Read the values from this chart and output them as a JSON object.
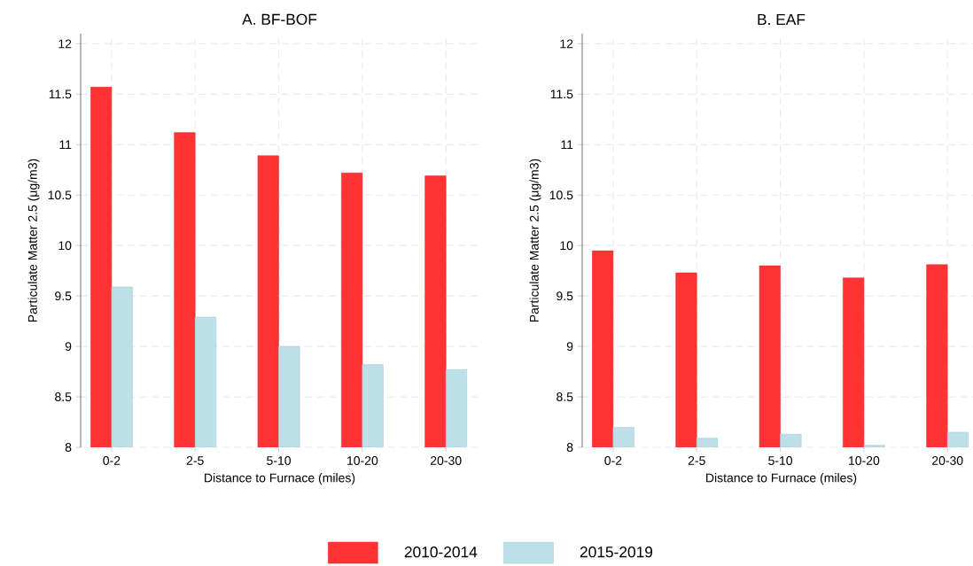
{
  "chart_data": [
    {
      "type": "bar",
      "title": "A. BF-BOF",
      "xlabel": "Distance to Furnace (miles)",
      "ylabel": "Particulate Matter 2.5 (μg/m3)",
      "categories": [
        "0-2",
        "2-5",
        "5-10",
        "10-20",
        "20-30"
      ],
      "series": [
        {
          "name": "2010-2014",
          "color": "#ff3333",
          "values": [
            11.57,
            11.12,
            10.89,
            10.72,
            10.69
          ]
        },
        {
          "name": "2015-2019",
          "color": "#bddfe8",
          "values": [
            9.59,
            9.29,
            9.0,
            8.82,
            8.77
          ]
        }
      ],
      "ylim": [
        8,
        12.1
      ],
      "yticks": [
        8,
        8.5,
        9,
        9.5,
        10,
        10.5,
        11,
        11.5,
        12
      ],
      "grid": true,
      "legend": "bottom"
    },
    {
      "type": "bar",
      "title": "B. EAF",
      "xlabel": "Distance to Furnace (miles)",
      "ylabel": "Particulate Matter 2.5 (μg/m3)",
      "categories": [
        "0-2",
        "2-5",
        "5-10",
        "10-20",
        "20-30"
      ],
      "series": [
        {
          "color": "#ff3333",
          "values": [
            9.95,
            9.73,
            9.8,
            9.68,
            9.81
          ]
        },
        {
          "color": "#bddfe8",
          "values": [
            8.2,
            8.09,
            8.13,
            8.02,
            8.15
          ]
        }
      ],
      "ylim": [
        8,
        12.1
      ],
      "yticks": [
        8,
        8.5,
        9,
        9.5,
        10,
        10.5,
        11,
        11.5,
        12
      ],
      "grid": true
    }
  ]
}
